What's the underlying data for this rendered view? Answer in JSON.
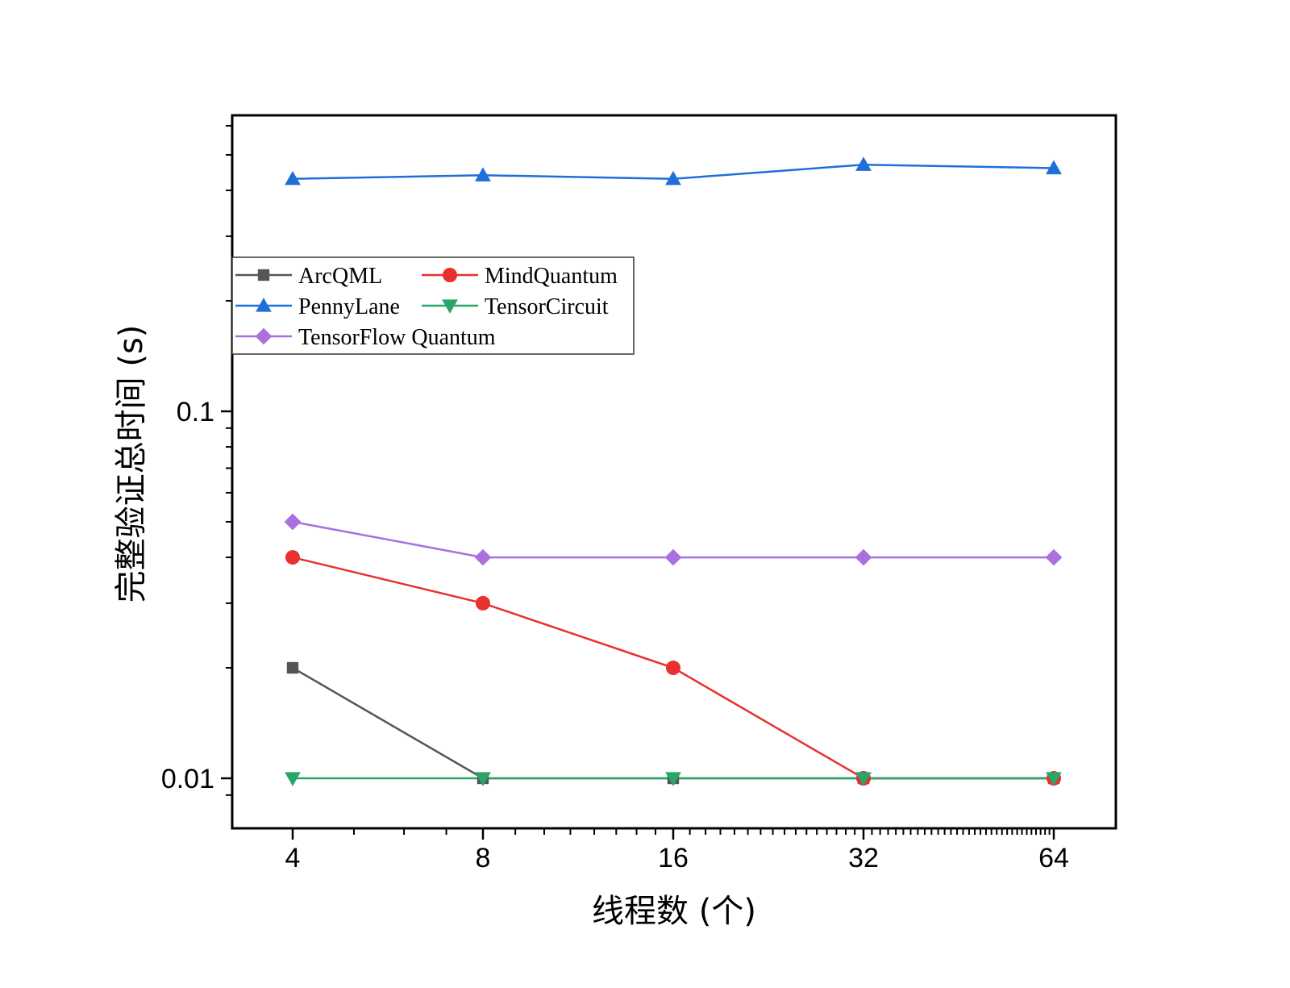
{
  "chart_data": {
    "type": "line",
    "xlabel": "线程数 (个)",
    "ylabel": "完整验证总时间 (s)",
    "x_scale": "log2",
    "y_scale": "log10",
    "xlim": [
      3.5,
      72
    ],
    "ylim": [
      0.0087,
      0.82
    ],
    "x": [
      4,
      8,
      16,
      32,
      64
    ],
    "x_tick_labels": [
      "4",
      "8",
      "16",
      "32",
      "64"
    ],
    "y_ticks": [
      0.01,
      0.1
    ],
    "y_tick_labels": [
      "0.01",
      "0.1"
    ],
    "grid": false,
    "legend": {
      "placement": "upper-left",
      "columns": 2
    },
    "series": [
      {
        "name": "ArcQML",
        "color": "#555555",
        "marker": "square",
        "values": [
          0.02,
          0.01,
          0.01,
          0.01,
          0.01
        ]
      },
      {
        "name": "MindQuantum",
        "color": "#e8302f",
        "marker": "circle",
        "values": [
          0.04,
          0.03,
          0.02,
          0.01,
          0.01
        ]
      },
      {
        "name": "PennyLane",
        "color": "#1f6fd8",
        "marker": "triangle-up",
        "values": [
          0.43,
          0.44,
          0.43,
          0.47,
          0.46
        ]
      },
      {
        "name": "TensorCircuit",
        "color": "#2aa568",
        "marker": "triangle-down",
        "values": [
          0.01,
          0.01,
          0.01,
          0.01,
          0.01
        ]
      },
      {
        "name": "TensorFlow Quantum",
        "color": "#a970de",
        "marker": "diamond",
        "values": [
          0.05,
          0.04,
          0.04,
          0.04,
          0.04
        ]
      }
    ]
  }
}
